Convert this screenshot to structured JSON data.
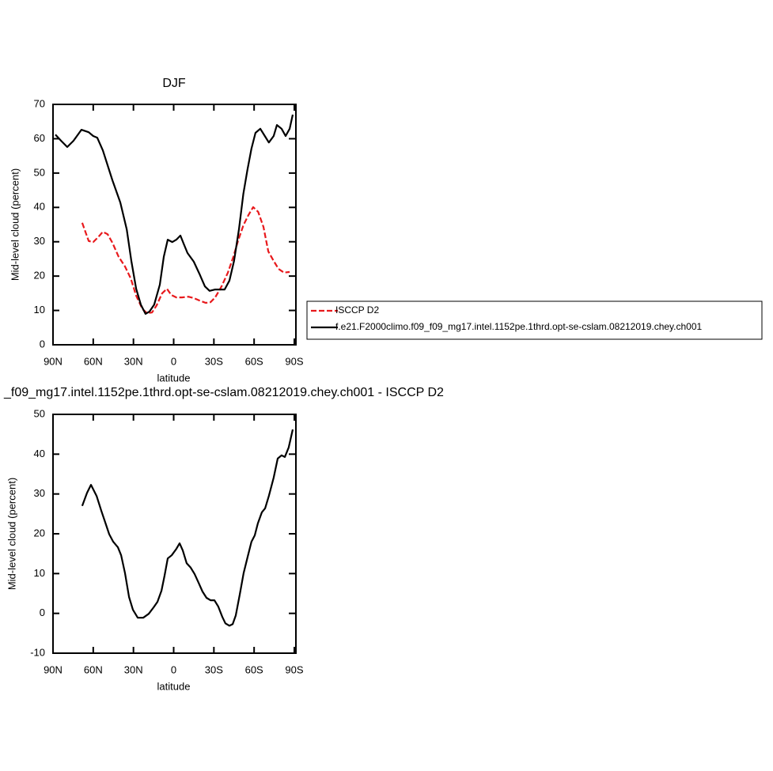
{
  "chart_data": [
    {
      "type": "line",
      "title": "DJF",
      "xlabel": "latitude",
      "ylabel": "Mid-level cloud (percent)",
      "xlim": [
        90,
        -90
      ],
      "ylim": [
        0,
        70
      ],
      "xticks": [
        {
          "value": 90,
          "label": "90N"
        },
        {
          "value": 60,
          "label": "60N"
        },
        {
          "value": 30,
          "label": "30N"
        },
        0,
        {
          "value": -30,
          "label": "30S"
        },
        {
          "value": -60,
          "label": "60S"
        },
        {
          "value": -90,
          "label": "90S"
        }
      ],
      "yticks": [
        0,
        10,
        20,
        30,
        40,
        50,
        60,
        70
      ],
      "legend": "right",
      "series": [
        {
          "name": "ISCCP D2",
          "color": "#e8191c",
          "dashed": true,
          "x": [
            68.2,
            63.4,
            60,
            56.4,
            52.8,
            49.3,
            45.7,
            41,
            36.3,
            32,
            28,
            23.3,
            19.8,
            16.2,
            12.7,
            8.6,
            5,
            1.8,
            -2,
            -6.2,
            -10.9,
            -15,
            -19.2,
            -23.9,
            -27.5,
            -31,
            -35.7,
            -40.4,
            -44.5,
            -48,
            -52,
            -55.8,
            -59.3,
            -63,
            -67,
            -70.6,
            -74.6,
            -78.2,
            -82.3,
            -86.5
          ],
          "values": [
            35.5,
            30.2,
            29.9,
            31.3,
            32.9,
            32.2,
            29.7,
            25.6,
            22.8,
            19.3,
            14.3,
            10.4,
            9.2,
            9.4,
            11.5,
            15.0,
            16.3,
            14.5,
            13.8,
            13.8,
            14.0,
            13.6,
            12.9,
            12.2,
            12.4,
            13.8,
            17,
            21,
            25.6,
            30.2,
            34.8,
            37.8,
            40.1,
            38.7,
            34.3,
            27.2,
            24.4,
            22.1,
            21,
            21.2
          ]
        },
        {
          "name": "f.e21.F2000climo.f09_f09_mg17.intel.1152pe.1thrd.opt-se-cslam.08212019.chey.ch001",
          "color": "#000000",
          "dashed": false,
          "x": [
            88.2,
            84,
            79.4,
            74.7,
            68.8,
            63.4,
            60,
            57,
            52.8,
            45.7,
            39.8,
            35,
            31.6,
            28,
            24.5,
            21,
            18,
            14.5,
            10.3,
            7.4,
            4.4,
            1,
            -2,
            -5,
            -7.4,
            -10.3,
            -15,
            -19.2,
            -23.3,
            -26.8,
            -31,
            -35.7,
            -38,
            -41.6,
            -45,
            -48.7,
            -52,
            -55,
            -58,
            -61,
            -64.6,
            -68,
            -71,
            -74.6,
            -77,
            -80.5,
            -83.5,
            -86.5,
            -88.8
          ],
          "values": [
            61.2,
            59.4,
            57.6,
            59.4,
            62.6,
            61.9,
            60.8,
            60.3,
            56.6,
            47.9,
            41.4,
            33.6,
            24.4,
            16.3,
            11.7,
            9.0,
            9.7,
            11.7,
            17.5,
            25.6,
            30.6,
            29.9,
            30.6,
            31.8,
            29.5,
            26.7,
            24.2,
            20.7,
            17.0,
            15.7,
            16.1,
            16.1,
            16.1,
            18.7,
            24.4,
            33.6,
            44,
            50.9,
            57.1,
            61.7,
            62.9,
            60.8,
            58.9,
            60.8,
            64,
            62.9,
            60.8,
            62.9,
            67
          ]
        }
      ]
    },
    {
      "type": "line",
      "title": "_f09_mg17.intel.1152pe.1thrd.opt-se-cslam.08212019.chey.ch001 - ISCCP D2",
      "xlabel": "latitude",
      "ylabel": "Mid-level cloud (percent)",
      "xlim": [
        90,
        -90
      ],
      "ylim": [
        -10,
        50
      ],
      "xticks": [
        {
          "value": 90,
          "label": "90N"
        },
        {
          "value": 60,
          "label": "60N"
        },
        {
          "value": 30,
          "label": "30N"
        },
        0,
        {
          "value": -30,
          "label": "30S"
        },
        {
          "value": -60,
          "label": "60S"
        },
        {
          "value": -90,
          "label": "90S"
        }
      ],
      "yticks": [
        -10,
        0,
        10,
        20,
        30,
        40,
        50
      ],
      "series": [
        {
          "color": "#000000",
          "dashed": false,
          "x": [
            68.2,
            64.6,
            61.7,
            57.5,
            54,
            51,
            48.1,
            45.1,
            41.6,
            39.2,
            36.3,
            33.3,
            30.4,
            26.8,
            22.7,
            18.6,
            15,
            12.1,
            9.1,
            6.8,
            4.4,
            1.5,
            -2,
            -4.4,
            -6.8,
            -9.7,
            -12.7,
            -15.6,
            -18.6,
            -21.5,
            -24.5,
            -27.5,
            -30.4,
            -33.3,
            -36.3,
            -38.6,
            -41.6,
            -44,
            -46.3,
            -49.3,
            -52.2,
            -55.2,
            -58,
            -60.5,
            -62.8,
            -65.8,
            -68.2,
            -71,
            -74.6,
            -77.6,
            -80.5,
            -82.9,
            -85.8,
            -88.8
          ],
          "values": [
            27,
            30.3,
            32.3,
            29.5,
            25.8,
            22.8,
            19.9,
            18.0,
            16.6,
            14.6,
            10.1,
            4.1,
            0.9,
            -1.1,
            -1.1,
            -0.1,
            1.5,
            2.9,
            5.7,
            9.5,
            13.8,
            14.6,
            16.2,
            17.6,
            15.8,
            12.6,
            11.5,
            9.9,
            7.7,
            5.5,
            3.9,
            3.3,
            3.3,
            1.7,
            -0.9,
            -2.5,
            -3.1,
            -2.7,
            -0.5,
            4.7,
            10.1,
            14.2,
            18,
            19.6,
            22.6,
            25.4,
            26.4,
            29.5,
            34.1,
            38.9,
            39.7,
            39.3,
            41.7,
            46.2
          ]
        }
      ]
    }
  ]
}
